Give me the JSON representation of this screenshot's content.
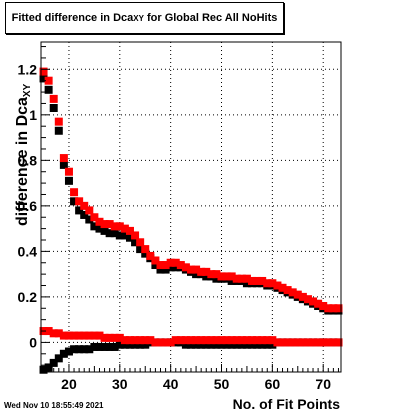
{
  "title": {
    "prefix": "Fitted difference in Dca",
    "sub": "XY",
    "suffix": " for Global Rec All NoHits"
  },
  "timestamp": "Wed Nov 10 18:55:49 2021",
  "chart_data": {
    "type": "scatter",
    "title": "Fitted difference in Dca_XY for Global Rec All NoHits",
    "xlabel": "No. of Fit Points",
    "ylabel": "difference in Dca_XY",
    "xlim": [
      14.5,
      73.5
    ],
    "ylim": [
      -0.13,
      1.32
    ],
    "xticks": [
      20,
      30,
      40,
      50,
      60,
      70
    ],
    "yticks": [
      0,
      0.2,
      0.4,
      0.6,
      0.8,
      1,
      1.2
    ],
    "ytick_labels": [
      "0",
      "0.2",
      "0.4",
      "0.6",
      "0.8",
      "1",
      "1.2"
    ],
    "grid": true,
    "marker": "square",
    "x": [
      15,
      16,
      17,
      18,
      19,
      20,
      21,
      22,
      23,
      24,
      25,
      26,
      27,
      28,
      29,
      30,
      31,
      32,
      33,
      34,
      35,
      36,
      37,
      38,
      39,
      40,
      41,
      42,
      43,
      44,
      45,
      46,
      47,
      48,
      49,
      50,
      51,
      52,
      53,
      54,
      55,
      56,
      57,
      58,
      59,
      60,
      61,
      62,
      63,
      64,
      65,
      66,
      67,
      68,
      69,
      70,
      71,
      72,
      73
    ],
    "series": [
      {
        "color": "#000000",
        "values": [
          1.16,
          1.11,
          1.03,
          0.93,
          0.78,
          0.71,
          0.62,
          0.58,
          0.56,
          0.54,
          0.51,
          0.5,
          0.49,
          0.48,
          0.48,
          0.47,
          0.47,
          0.46,
          0.44,
          0.41,
          0.39,
          0.37,
          0.34,
          0.32,
          0.32,
          0.33,
          0.33,
          0.33,
          0.32,
          0.31,
          0.3,
          0.3,
          0.29,
          0.29,
          0.28,
          0.28,
          0.28,
          0.27,
          0.27,
          0.27,
          0.26,
          0.26,
          0.26,
          0.26,
          0.25,
          0.25,
          0.24,
          0.23,
          0.22,
          0.21,
          0.2,
          0.19,
          0.18,
          0.17,
          0.16,
          0.15,
          0.14,
          0.14,
          0.14
        ]
      },
      {
        "color": "#ff0000",
        "values": [
          1.19,
          1.15,
          1.07,
          0.97,
          0.81,
          0.75,
          0.66,
          0.62,
          0.6,
          0.58,
          0.55,
          0.53,
          0.52,
          0.52,
          0.51,
          0.51,
          0.5,
          0.49,
          0.47,
          0.44,
          0.41,
          0.38,
          0.36,
          0.34,
          0.34,
          0.35,
          0.35,
          0.34,
          0.33,
          0.32,
          0.32,
          0.31,
          0.31,
          0.3,
          0.3,
          0.29,
          0.29,
          0.29,
          0.28,
          0.28,
          0.28,
          0.27,
          0.27,
          0.27,
          0.26,
          0.26,
          0.25,
          0.24,
          0.23,
          0.22,
          0.21,
          0.2,
          0.19,
          0.18,
          0.17,
          0.16,
          0.15,
          0.15,
          0.15
        ]
      },
      {
        "color": "#000000",
        "values": [
          -0.12,
          -0.11,
          -0.09,
          -0.07,
          -0.05,
          -0.04,
          -0.03,
          -0.03,
          -0.03,
          -0.03,
          -0.02,
          -0.02,
          -0.02,
          -0.02,
          -0.02,
          -0.01,
          -0.01,
          -0.01,
          -0.01,
          -0.01,
          -0.01,
          0,
          0,
          0,
          0,
          0,
          0,
          0,
          -0.01,
          -0.01,
          -0.01,
          -0.01,
          -0.01,
          -0.01,
          -0.01,
          -0.01,
          -0.01,
          -0.01,
          -0.01,
          -0.01,
          -0.01,
          -0.01,
          -0.01,
          -0.01,
          -0.01,
          -0.01,
          0,
          0,
          0,
          0,
          0,
          0,
          0,
          0,
          0,
          0,
          0,
          0,
          0
        ]
      },
      {
        "color": "#ff0000",
        "values": [
          0.05,
          0.05,
          0.04,
          0.04,
          0.03,
          0.03,
          0.03,
          0.03,
          0.03,
          0.03,
          0.03,
          0.03,
          0.02,
          0.02,
          0.02,
          0.02,
          0.01,
          0.01,
          0.01,
          0.01,
          0.01,
          0.01,
          0,
          0,
          0,
          0,
          0.01,
          0.01,
          0.01,
          0.01,
          0.01,
          0.01,
          0.01,
          0.01,
          0.01,
          0.01,
          0.01,
          0.01,
          0.01,
          0.01,
          0.01,
          0.01,
          0.01,
          0.01,
          0.01,
          0.01,
          0,
          0,
          0,
          0,
          0,
          0,
          0,
          0,
          0,
          0,
          0,
          0,
          0
        ]
      }
    ]
  }
}
